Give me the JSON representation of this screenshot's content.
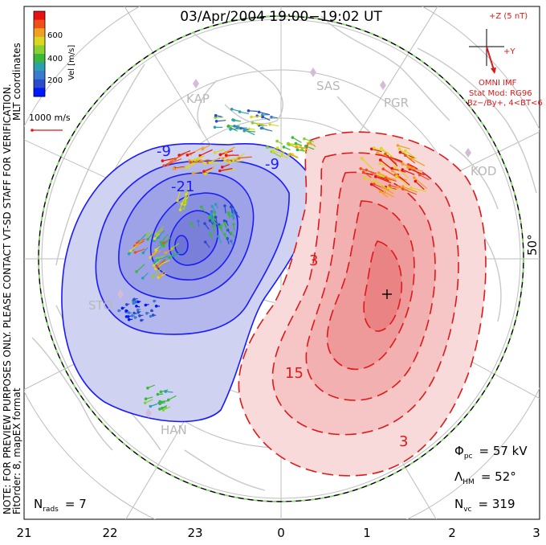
{
  "title": "03/Apr/2004  19:00−19:02 UT",
  "side_note_1": "NOTE: FOR PREVIEW PURPOSES ONLY.  PLEASE CONTACT VT-SD STAFF FOR VERIFICATION.",
  "side_note_2": "FitOrder: 8,  mapEX format",
  "coords_label": "MLT coordinates",
  "colorbar": {
    "label": "Vel [m/s]",
    "ticks": [
      "200",
      "400",
      "600"
    ],
    "colors": [
      "#0018ff",
      "#2a4cc8",
      "#3a7ad0",
      "#2aa0b0",
      "#3ab83a",
      "#8ad030",
      "#d8d820",
      "#f0a020",
      "#f05018",
      "#e81010"
    ]
  },
  "ref_vector": "1000 m/s",
  "imf": {
    "z_label": "+Z (5 nT)",
    "y_label": "+Y",
    "source": "OMNI IMF",
    "model": "Stat Mod: RG96",
    "condition": "Bz−/By+, 4<BT<6"
  },
  "stations": [
    "KAP",
    "SAS",
    "PGR",
    "KOD",
    "STO",
    "HAN"
  ],
  "contour_labels": [
    "-9",
    "-21",
    "-9",
    "3",
    "15",
    "3"
  ],
  "lat_label": "50°",
  "stats": {
    "phi_sym": "Φ",
    "phi_sub": "pc",
    "phi_val": "= 57 kV",
    "lambda_sym": "Λ",
    "lambda_sub": "HM",
    "lambda_val": "= 52°",
    "nvc_sym": "N",
    "nvc_sub": "vc",
    "nvc_val": "= 319",
    "nrads_sym": "N",
    "nrads_sub": "rads",
    "nrads_val": "= 7"
  },
  "mlt_ticks": [
    "21",
    "22",
    "23",
    "0",
    "1",
    "2",
    "3"
  ],
  "colors": {
    "negative": "#1a1aff",
    "positive": "#e01818",
    "map": "#c8c8c8",
    "boundary": "#80e060"
  }
}
